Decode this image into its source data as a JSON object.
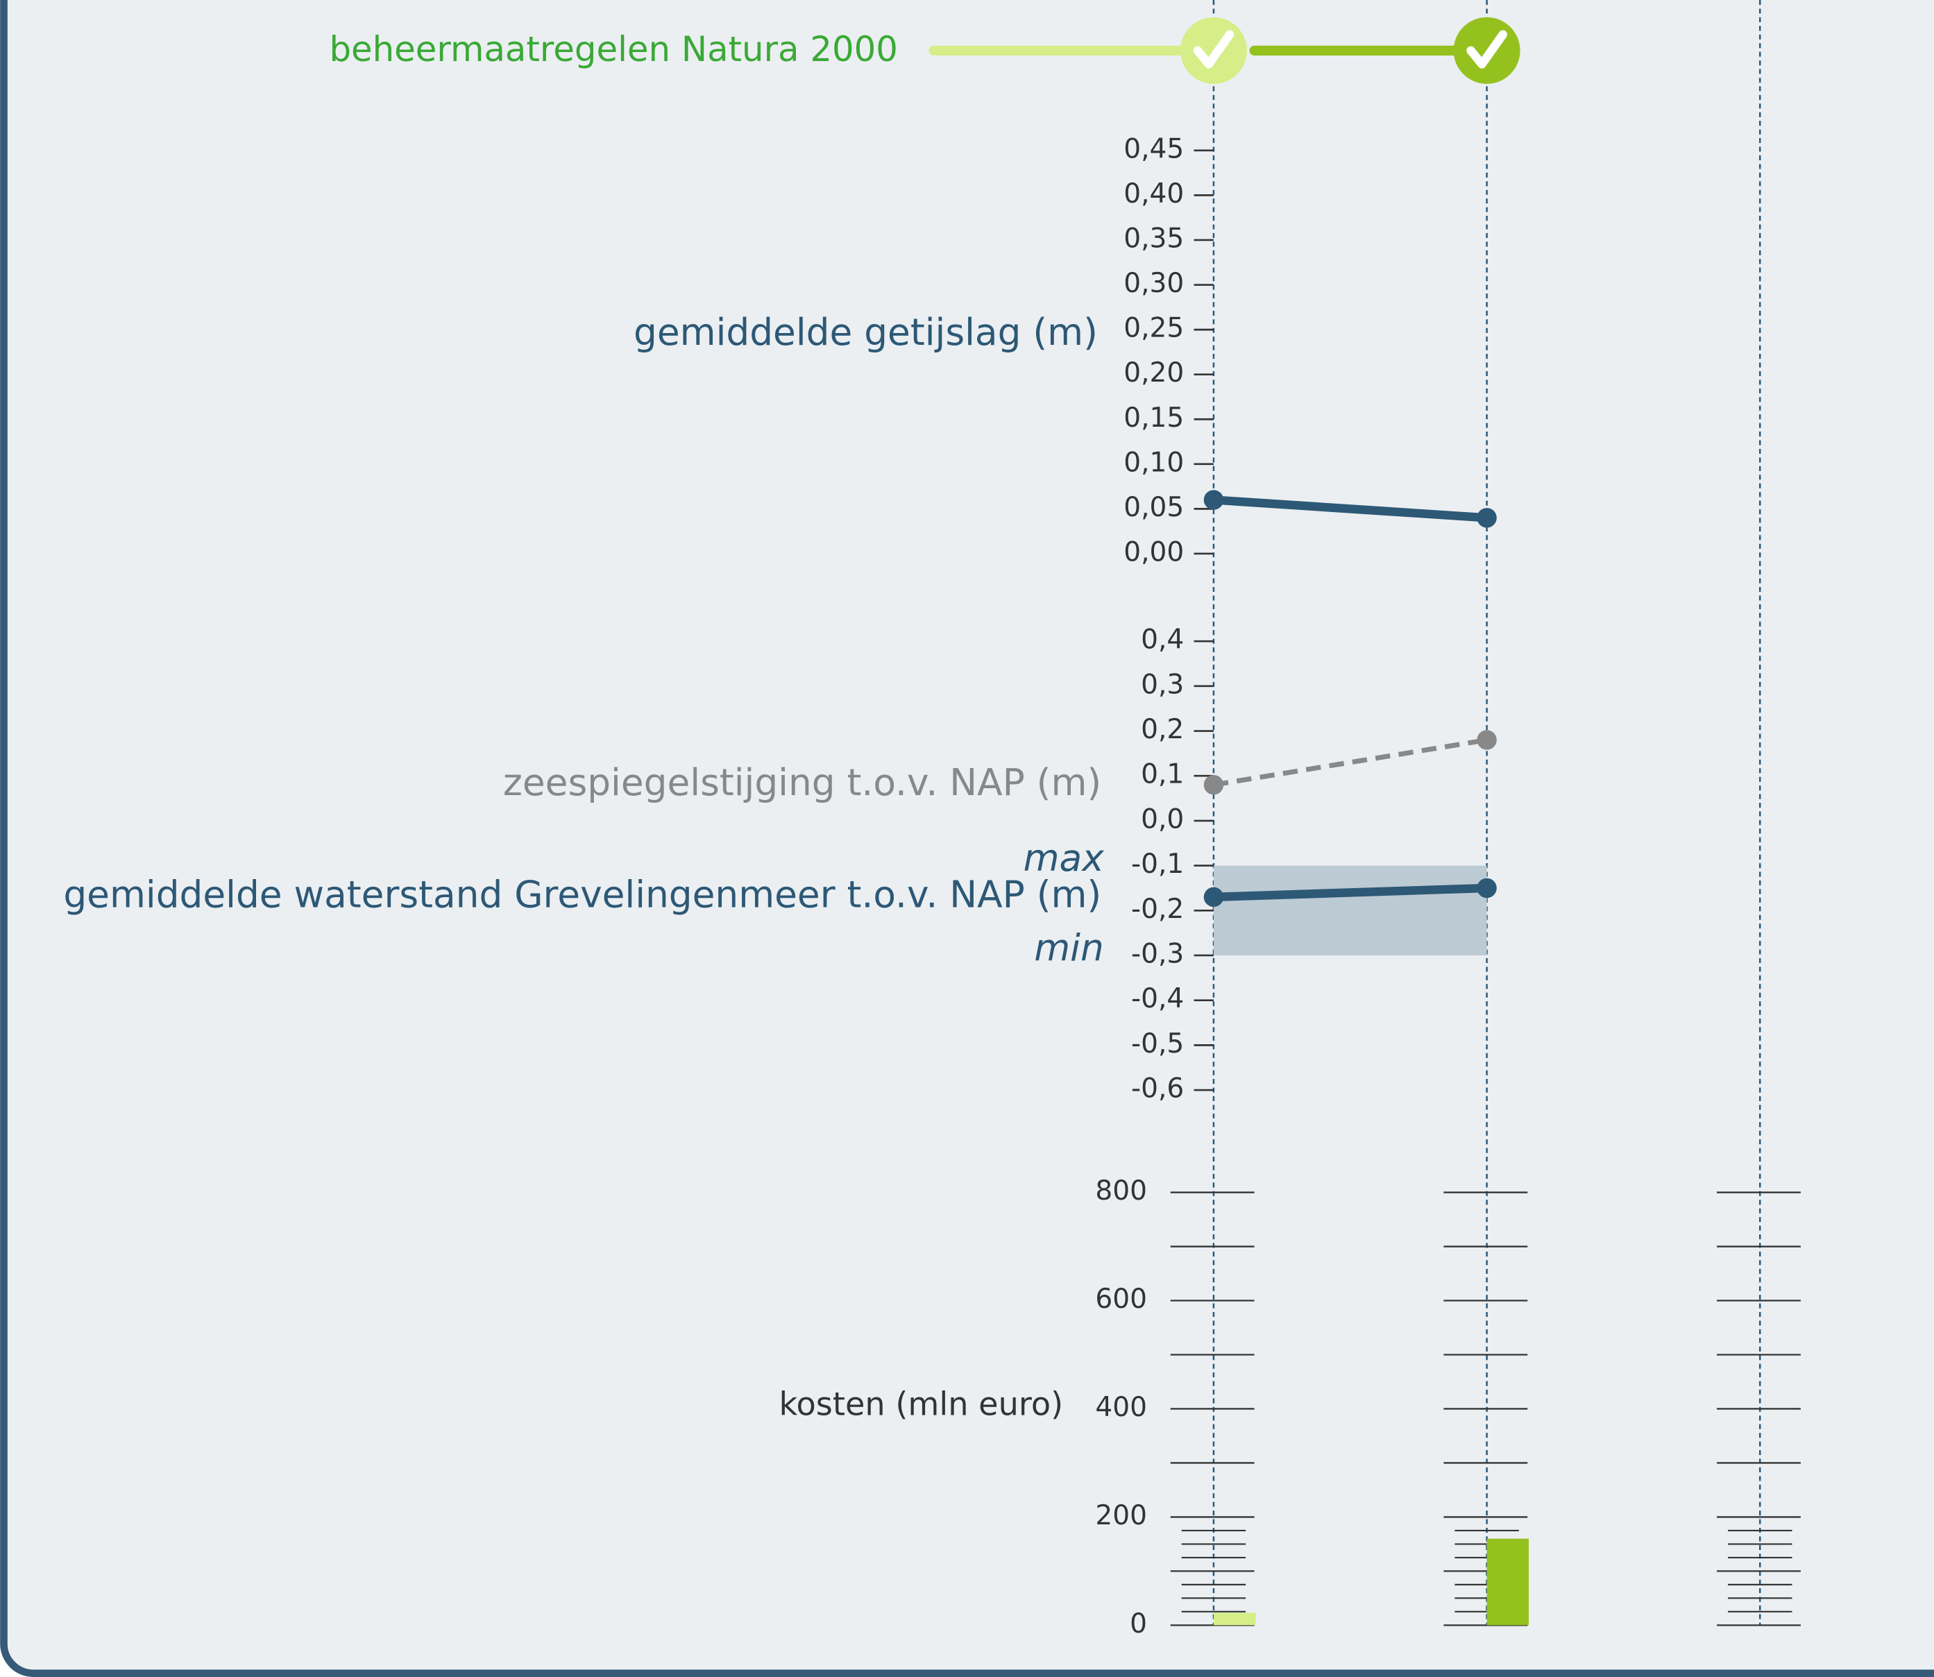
{
  "natura": {
    "label": "beheermaatregelen Natura 2000",
    "colors": [
      "#d5ee88",
      "#95c11f"
    ]
  },
  "chart_data": [
    {
      "type": "line",
      "ylabel": "gemiddelde getijslag (m)",
      "categories": [
        null,
        null,
        null
      ],
      "series": [
        {
          "color": "#2d5876",
          "values": [
            0.06,
            0.04,
            null
          ]
        }
      ],
      "ylim": [
        0,
        0.45
      ],
      "yticks": [
        {
          "value": 0,
          "label": "0,00"
        },
        {
          "value": 0.05,
          "label": "0,05"
        },
        {
          "value": 0.1,
          "label": "0,10"
        },
        {
          "value": 0.15,
          "label": "0,15"
        },
        {
          "value": 0.2,
          "label": "0,20"
        },
        {
          "value": 0.25,
          "label": "0,25"
        },
        {
          "value": 0.3,
          "label": "0,30"
        },
        {
          "value": 0.35,
          "label": "0,35"
        },
        {
          "value": 0.4,
          "label": "0,40"
        },
        {
          "value": 0.45,
          "label": "0,45"
        }
      ]
    },
    {
      "type": "line",
      "categories": [
        null,
        null,
        null
      ],
      "series": [
        {
          "name": "zeespiegelstijging t.o.v. NAP (m)",
          "color": "#888888",
          "dashed": true,
          "values": [
            0.08,
            0.18,
            null
          ]
        },
        {
          "name": "gemiddelde waterstand Grevelingenmeer t.o.v. NAP (m)",
          "color": "#2d5876",
          "values": [
            -0.17,
            -0.15,
            null
          ]
        }
      ],
      "band": {
        "max": -0.1,
        "min": -0.3,
        "max_label": "max",
        "min_label": "min",
        "color": "#bccad3"
      },
      "ylim": [
        -0.6,
        0.4
      ],
      "yticks": [
        {
          "value": -0.6,
          "label": "-0,6"
        },
        {
          "value": -0.5,
          "label": "-0,5"
        },
        {
          "value": -0.4,
          "label": "-0,4"
        },
        {
          "value": -0.3,
          "label": "-0,3"
        },
        {
          "value": -0.2,
          "label": "-0,2"
        },
        {
          "value": -0.1,
          "label": "-0,1"
        },
        {
          "value": 0,
          "label": "0,0"
        },
        {
          "value": 0.1,
          "label": "0,1"
        },
        {
          "value": 0.2,
          "label": "0,2"
        },
        {
          "value": 0.3,
          "label": "0,3"
        },
        {
          "value": 0.4,
          "label": "0,4"
        }
      ]
    },
    {
      "type": "bar",
      "ylabel": "kosten (mln euro)",
      "categories": [
        null,
        null,
        null
      ],
      "values": [
        23,
        160,
        null
      ],
      "colors": [
        "#d5ee88",
        "#95c11f",
        null
      ],
      "ylim": [
        0,
        800
      ],
      "yticks": [
        0,
        200,
        400,
        600,
        800
      ],
      "yticks_minor": [
        100,
        300,
        500,
        700
      ],
      "yticks_fine": [
        25,
        50,
        75,
        125,
        150,
        175
      ]
    }
  ]
}
